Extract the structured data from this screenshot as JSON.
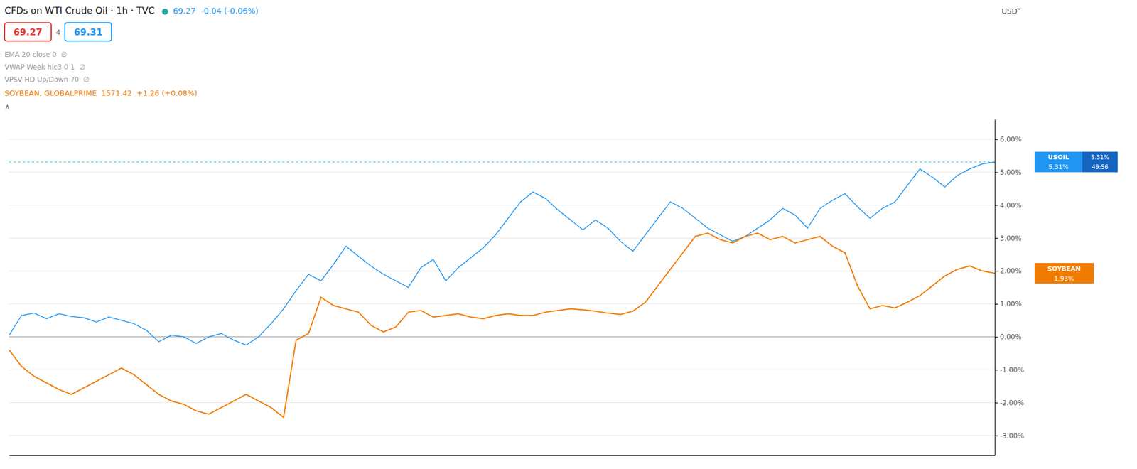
{
  "chart_data": {
    "type": "line",
    "title": "CFDs on WTI Crude Oil · 1h · TVC",
    "categories": [
      null,
      null,
      null,
      null,
      null,
      null,
      null,
      null,
      null,
      null,
      null,
      null,
      null,
      null,
      null,
      null,
      null,
      null,
      null,
      null,
      null,
      null,
      null,
      null,
      null,
      null,
      null,
      null,
      null,
      null,
      null,
      null,
      null,
      null,
      null,
      null,
      null,
      null,
      null,
      null,
      null,
      null,
      null,
      null,
      null,
      null,
      null,
      null,
      null,
      null,
      null,
      null,
      null,
      null,
      null,
      null,
      null,
      null,
      null,
      null,
      null,
      null,
      null,
      null,
      null,
      null,
      null,
      null,
      null,
      null,
      null,
      null,
      null,
      null,
      null,
      null,
      null,
      null,
      null,
      null
    ],
    "series": [
      {
        "name": "USOIL",
        "color": "#2196f3",
        "values": [
          0.05,
          0.65,
          0.72,
          0.55,
          0.7,
          0.62,
          0.58,
          0.45,
          0.6,
          0.5,
          0.4,
          0.2,
          -0.15,
          0.05,
          0.0,
          -0.2,
          0.0,
          0.1,
          -0.1,
          -0.25,
          0.0,
          0.4,
          0.85,
          1.4,
          1.9,
          1.7,
          2.2,
          2.75,
          2.45,
          2.15,
          1.9,
          1.7,
          1.5,
          2.1,
          2.35,
          1.7,
          2.1,
          2.4,
          2.7,
          3.1,
          3.6,
          4.1,
          4.4,
          4.2,
          3.85,
          3.55,
          3.25,
          3.55,
          3.3,
          2.9,
          2.6,
          3.1,
          3.6,
          4.1,
          3.9,
          3.6,
          3.3,
          3.1,
          2.9,
          3.05,
          3.3,
          3.55,
          3.9,
          3.7,
          3.3,
          3.9,
          4.15,
          4.35,
          3.95,
          3.6,
          3.9,
          4.1,
          4.6,
          5.1,
          4.85,
          4.55,
          4.9,
          5.1,
          5.25,
          5.31
        ]
      },
      {
        "name": "SOYBEAN",
        "color": "#f07b00",
        "values": [
          -0.4,
          -0.9,
          -1.2,
          -1.4,
          -1.6,
          -1.75,
          -1.55,
          -1.35,
          -1.15,
          -0.95,
          -1.15,
          -1.45,
          -1.75,
          -1.95,
          -2.05,
          -2.25,
          -2.35,
          -2.15,
          -1.95,
          -1.75,
          -1.95,
          -2.15,
          -2.45,
          -0.1,
          0.1,
          1.2,
          0.95,
          0.85,
          0.75,
          0.35,
          0.15,
          0.3,
          0.75,
          0.8,
          0.6,
          0.65,
          0.7,
          0.6,
          0.55,
          0.65,
          0.7,
          0.65,
          0.65,
          0.75,
          0.8,
          0.85,
          0.82,
          0.78,
          0.72,
          0.68,
          0.78,
          1.05,
          1.55,
          2.05,
          2.55,
          3.05,
          3.15,
          2.95,
          2.85,
          3.05,
          3.15,
          2.95,
          3.05,
          2.85,
          2.95,
          3.05,
          2.75,
          2.55,
          1.55,
          0.85,
          0.95,
          0.88,
          1.05,
          1.25,
          1.55,
          1.85,
          2.05,
          2.15,
          2.0,
          1.93
        ]
      }
    ],
    "ylim": [
      -3.6,
      6.6
    ],
    "yticks": [
      {
        "value": -3.0,
        "label": "-3.00%"
      },
      {
        "value": -2.0,
        "label": "-2.00%"
      },
      {
        "value": -1.0,
        "label": "-1.00%"
      },
      {
        "value": 0.0,
        "label": "0.00%"
      },
      {
        "value": 1.0,
        "label": "1.00%"
      },
      {
        "value": 2.0,
        "label": "2.00%"
      },
      {
        "value": 3.0,
        "label": "3.00%"
      },
      {
        "value": 4.0,
        "label": "4.00%"
      },
      {
        "value": 5.0,
        "label": "5.00%"
      },
      {
        "value": 6.0,
        "label": "6.00%"
      }
    ],
    "grid": true,
    "tick_labels": "y",
    "reference_lines": [
      {
        "value": 0,
        "color": "#9598a1"
      },
      {
        "value": 5.31,
        "color": "#26c6da",
        "line_style": "dashed"
      }
    ],
    "annotations": [
      {
        "text": "●",
        "color": "#26a69a"
      },
      {
        "text": "69.27  -0.04 (-0.06%)",
        "color": "#2196f3"
      },
      {
        "text": "USD˅",
        "color": "#555555"
      },
      {
        "text": "69.27",
        "color": "#e53935"
      },
      {
        "text": "4",
        "color": "#666666"
      },
      {
        "text": "69.31",
        "color": "#2196f3"
      },
      {
        "text": "EMA 20 close 0  ∅",
        "color": "#9598a1"
      },
      {
        "text": "VWAP Week hlc3 0 1  ∅",
        "color": "#9598a1"
      },
      {
        "text": "VPSV HD Up/Down 70  ∅",
        "color": "#9598a1"
      },
      {
        "text": "SOYBEAN, GLOBALPRIME  1571.42  +1.26 (+0.08%)",
        "color": "#f07b00"
      },
      {
        "text": "∧",
        "color": "#666666"
      },
      {
        "text": "5.31%",
        "y": 5.31
      },
      {
        "text": "5.31%",
        "y": 5.31,
        "color": "#1565c0"
      },
      {
        "text": "49:56",
        "y": 5.31,
        "color": "#1565c0"
      },
      {
        "text": "1.93%",
        "y": 1.93
      }
    ]
  }
}
